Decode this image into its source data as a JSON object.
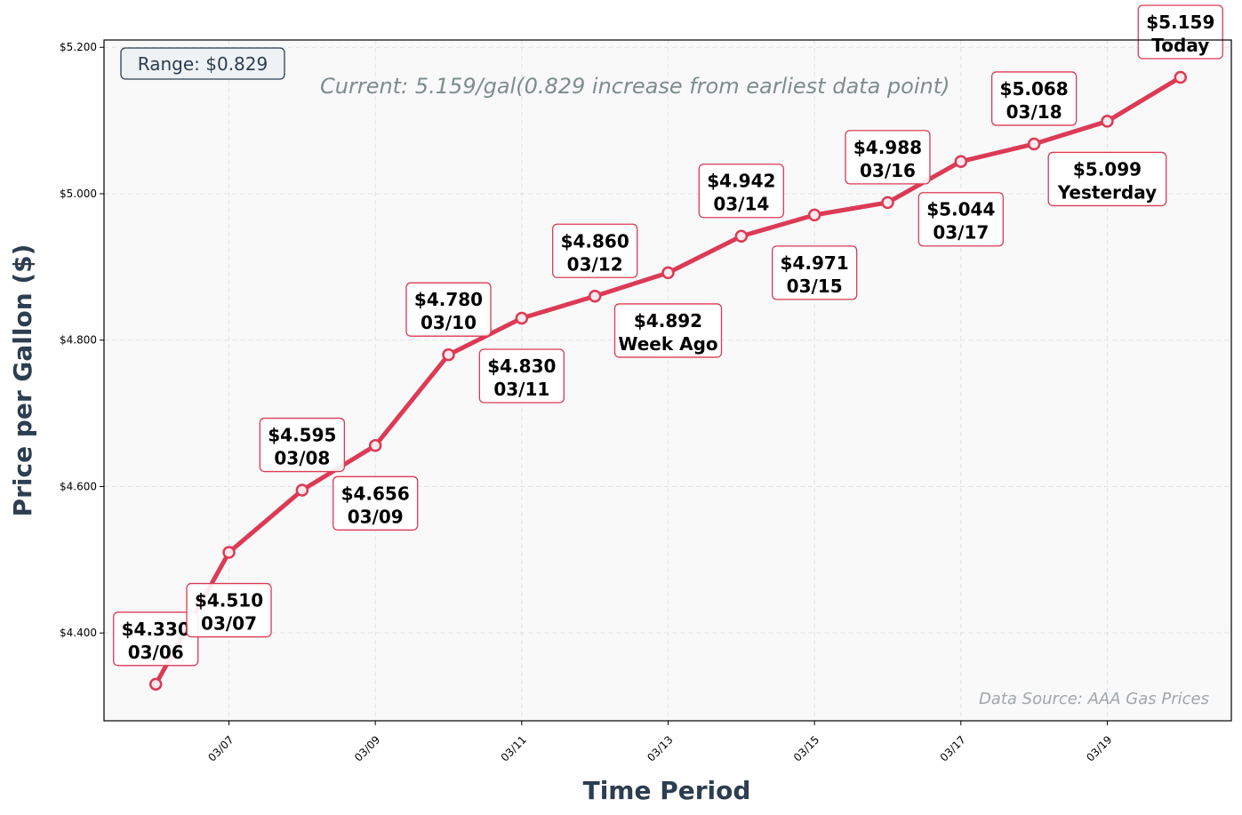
{
  "chart_data": {
    "type": "line",
    "xlabel": "Time Period",
    "ylabel": "Price per Gallon ($)",
    "x": [
      "03/06",
      "03/07",
      "03/08",
      "03/09",
      "03/10",
      "03/11",
      "03/12",
      "03/13",
      "03/14",
      "03/15",
      "03/16",
      "03/17",
      "03/18",
      "03/19",
      "03/20"
    ],
    "values": [
      4.33,
      4.51,
      4.595,
      4.656,
      4.78,
      4.83,
      4.86,
      4.892,
      4.942,
      4.971,
      4.988,
      5.044,
      5.068,
      5.099,
      5.159
    ],
    "point_labels": [
      [
        "$4.330",
        "03/06"
      ],
      [
        "$4.510",
        "03/07"
      ],
      [
        "$4.595",
        "03/08"
      ],
      [
        "$4.656",
        "03/09"
      ],
      [
        "$4.780",
        "03/10"
      ],
      [
        "$4.830",
        "03/11"
      ],
      [
        "$4.860",
        "03/12"
      ],
      [
        "$4.892",
        "Week Ago"
      ],
      [
        "$4.942",
        "03/14"
      ],
      [
        "$4.971",
        "03/15"
      ],
      [
        "$4.988",
        "03/16"
      ],
      [
        "$5.044",
        "03/17"
      ],
      [
        "$5.068",
        "03/18"
      ],
      [
        "$5.099",
        "Yesterday"
      ],
      [
        "$5.159",
        "Today"
      ]
    ],
    "xtick_labels": [
      "03/07",
      "03/09",
      "03/11",
      "03/13",
      "03/15",
      "03/17",
      "03/19"
    ],
    "ytick_values": [
      4.4,
      4.6,
      4.8,
      5.0,
      5.2
    ],
    "ytick_labels": [
      "$4.400",
      "$4.600",
      "$4.800",
      "$5.000",
      "$5.200"
    ],
    "ylim": [
      4.28,
      5.21
    ],
    "grid": true,
    "line_color": "#dc3a55",
    "range_box": "Range: $0.829",
    "current_note": "Current: 5.159/gal(0.829 increase from earliest data point)",
    "source_note": "Data Source: AAA Gas Prices"
  }
}
